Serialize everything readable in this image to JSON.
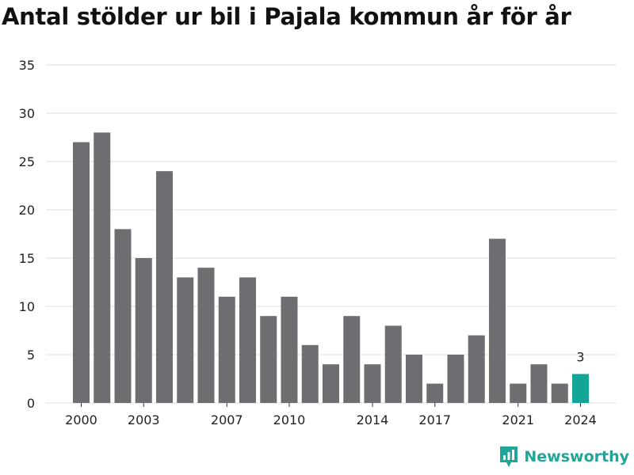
{
  "title": "Antal stölder ur bil i Pajala kommun år för år",
  "brand": "Newsworthy",
  "colors": {
    "bar": "#6e6d72",
    "highlight": "#13a596",
    "brand": "#22a598"
  },
  "chart_data": {
    "type": "bar",
    "title": "Antal stölder ur bil i Pajala kommun år för år",
    "xlabel": "",
    "ylabel": "",
    "categories": [
      "2000",
      "2001",
      "2002",
      "2003",
      "2004",
      "2005",
      "2006",
      "2007",
      "2008",
      "2009",
      "2010",
      "2011",
      "2012",
      "2013",
      "2014",
      "2015",
      "2016",
      "2017",
      "2018",
      "2019",
      "2020",
      "2021",
      "2022",
      "2023",
      "2024"
    ],
    "values": [
      27,
      28,
      18,
      15,
      24,
      13,
      14,
      11,
      13,
      9,
      11,
      6,
      4,
      9,
      4,
      8,
      5,
      2,
      5,
      7,
      17,
      2,
      4,
      2,
      3
    ],
    "x_tick_labels": [
      "2000",
      "2003",
      "2007",
      "2010",
      "2014",
      "2017",
      "2021",
      "2024"
    ],
    "y_ticks": [
      0,
      5,
      10,
      15,
      20,
      25,
      30,
      35
    ],
    "ylim": [
      0,
      35
    ],
    "grid": true,
    "highlight_index": 24,
    "data_labels": [
      {
        "index": 24,
        "text": "3"
      }
    ]
  }
}
